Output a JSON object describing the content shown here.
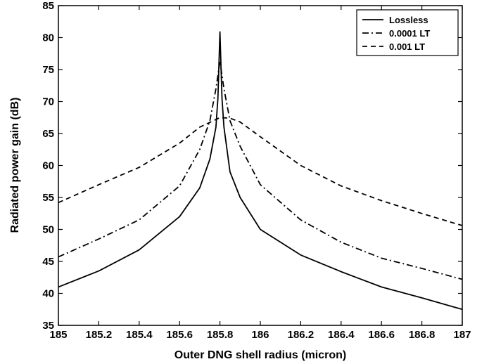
{
  "chart_data": {
    "type": "line",
    "xlabel": "Outer DNG shell radius (micron)",
    "ylabel": "Radiated power gain (dB)",
    "xlim": [
      185,
      187
    ],
    "ylim": [
      35,
      85
    ],
    "x_ticks": [
      "185",
      "185.2",
      "185.4",
      "185.6",
      "185.8",
      "186",
      "186.2",
      "186.4",
      "186.6",
      "186.8",
      "187"
    ],
    "y_ticks": [
      "35",
      "40",
      "45",
      "50",
      "55",
      "60",
      "65",
      "70",
      "75",
      "80",
      "85"
    ],
    "grid": false,
    "legend_position": "top-right",
    "series": [
      {
        "name": "Lossless",
        "style": "solid",
        "color": "#000000",
        "x": [
          185.0,
          185.2,
          185.4,
          185.6,
          185.7,
          185.75,
          185.78,
          185.79,
          185.8,
          185.81,
          185.82,
          185.85,
          185.9,
          186.0,
          186.2,
          186.4,
          186.6,
          186.8,
          187.0
        ],
        "y": [
          41.0,
          43.5,
          46.8,
          52.0,
          56.5,
          61.0,
          66.0,
          70.5,
          80.9,
          70.5,
          66.0,
          59.0,
          55.0,
          50.0,
          46.0,
          43.4,
          41.0,
          39.3,
          37.5
        ]
      },
      {
        "name": "0.0001 LT",
        "style": "dashdot",
        "color": "#000000",
        "x": [
          185.0,
          185.2,
          185.4,
          185.6,
          185.7,
          185.75,
          185.78,
          185.8,
          185.82,
          185.85,
          185.9,
          186.0,
          186.2,
          186.4,
          186.6,
          186.8,
          187.0
        ],
        "y": [
          45.7,
          48.5,
          51.5,
          56.8,
          62.5,
          67.0,
          72.0,
          76.3,
          72.0,
          67.0,
          63.0,
          57.0,
          51.5,
          48.0,
          45.5,
          43.9,
          42.2
        ]
      },
      {
        "name": "0.001 LT",
        "style": "dashed",
        "color": "#000000",
        "x": [
          185.0,
          185.2,
          185.4,
          185.6,
          185.7,
          185.8,
          185.85,
          185.9,
          186.0,
          186.2,
          186.4,
          186.6,
          186.8,
          187.0
        ],
        "y": [
          54.2,
          57.0,
          59.7,
          63.5,
          66.0,
          67.5,
          67.4,
          66.8,
          64.5,
          60.0,
          56.8,
          54.5,
          52.5,
          50.6
        ]
      }
    ]
  }
}
